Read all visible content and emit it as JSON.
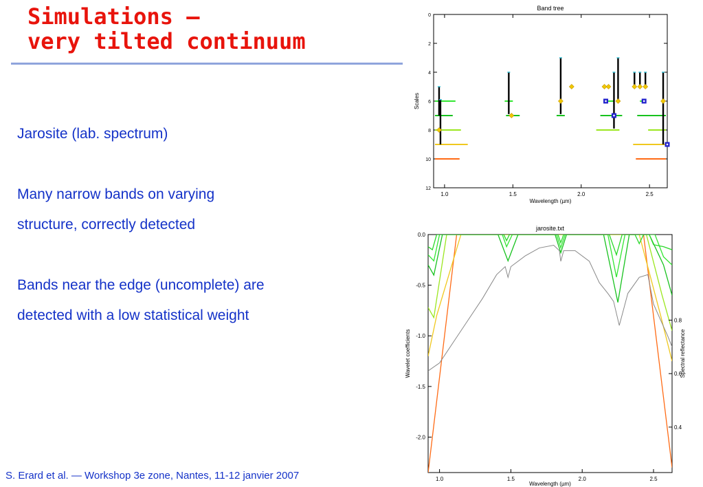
{
  "slide": {
    "title_line1": "Simulations —",
    "title_line2": "very tilted continuum",
    "bullets": [
      "Jarosite (lab. spectrum)",
      "Many narrow bands on varying",
      "structure, correctly detected",
      "Bands near the edge (uncomplete) are",
      "detected with a low statistical weight"
    ],
    "footer": "S. Erard et al. — Workshop 3e zone, Nantes, 11-12 janvier 2007",
    "colors": {
      "title": "#e8140c",
      "text": "#1432c8",
      "rule": "#8fa4dc"
    }
  },
  "chart_data": [
    {
      "type": "scatter",
      "title": "Band tree",
      "xlabel": "Wavelength (µm)",
      "ylabel": "Scales",
      "xlim": [
        0.92,
        2.63
      ],
      "ylim": [
        12,
        0
      ],
      "y_inverted": true,
      "xticks": [
        1.0,
        1.5,
        2.0,
        2.5
      ],
      "xticklabels": [
        "1.0",
        "1.5",
        "2.0",
        "2.5"
      ],
      "yticks": [
        0,
        2,
        4,
        6,
        8,
        10,
        12
      ],
      "yticklabels": [
        "0",
        "2",
        "4",
        "6",
        "8",
        "10",
        "12"
      ],
      "colors": {
        "s5": "#29d829",
        "s6": "#32e632",
        "s7": "#17c21e",
        "s8": "#9be61e",
        "s9": "#f0c81e",
        "s10": "#ff6a14",
        "stem": "#000000",
        "marker_gold": "#f0c800",
        "marker_blue": "#2222cc",
        "tick_cyan": "#34c0d6",
        "tick_pink": "#e63c78"
      },
      "stems": [
        {
          "x": 0.96,
          "y0": 5.0,
          "y1": 7.0
        },
        {
          "x": 0.97,
          "y0": 5.9,
          "y1": 9.0
        },
        {
          "x": 1.47,
          "y0": 4.0,
          "y1": 6.9
        },
        {
          "x": 1.85,
          "y0": 3.0,
          "y1": 6.9
        },
        {
          "x": 2.24,
          "y0": 4.0,
          "y1": 7.9
        },
        {
          "x": 2.27,
          "y0": 3.0,
          "y1": 6.0
        },
        {
          "x": 2.39,
          "y0": 4.0,
          "y1": 5.0
        },
        {
          "x": 2.43,
          "y0": 4.0,
          "y1": 5.0
        },
        {
          "x": 2.47,
          "y0": 4.0,
          "y1": 5.0
        },
        {
          "x": 2.6,
          "y0": 4.0,
          "y1": 9.0
        }
      ],
      "bands": [
        {
          "scale": 6,
          "x0": 0.93,
          "x1": 1.08
        },
        {
          "scale": 7,
          "x0": 0.93,
          "x1": 1.06
        },
        {
          "scale": 8,
          "x0": 0.93,
          "x1": 1.12
        },
        {
          "scale": 9,
          "x0": 0.93,
          "x1": 1.17
        },
        {
          "scale": 10,
          "x0": 0.93,
          "x1": 1.11
        },
        {
          "scale": 6,
          "x0": 1.44,
          "x1": 1.5
        },
        {
          "scale": 7,
          "x0": 1.45,
          "x1": 1.55
        },
        {
          "scale": 7,
          "x0": 1.82,
          "x1": 1.88
        },
        {
          "scale": 6,
          "x0": 2.18,
          "x1": 2.24
        },
        {
          "scale": 7,
          "x0": 2.14,
          "x1": 2.3
        },
        {
          "scale": 8,
          "x0": 2.11,
          "x1": 2.28
        },
        {
          "scale": 6,
          "x0": 2.43,
          "x1": 2.47
        },
        {
          "scale": 7,
          "x0": 2.41,
          "x1": 2.62
        },
        {
          "scale": 8,
          "x0": 2.49,
          "x1": 2.62
        },
        {
          "scale": 9,
          "x0": 2.38,
          "x1": 2.62
        },
        {
          "scale": 10,
          "x0": 2.4,
          "x1": 2.62
        }
      ],
      "gold_markers": [
        {
          "x": 0.96,
          "y": 8.0
        },
        {
          "x": 1.49,
          "y": 7.0
        },
        {
          "x": 1.85,
          "y": 6.0
        },
        {
          "x": 1.93,
          "y": 5.0
        },
        {
          "x": 2.17,
          "y": 5.0
        },
        {
          "x": 2.2,
          "y": 5.0
        },
        {
          "x": 2.27,
          "y": 6.0
        },
        {
          "x": 2.39,
          "y": 5.0
        },
        {
          "x": 2.43,
          "y": 5.0
        },
        {
          "x": 2.47,
          "y": 5.0
        },
        {
          "x": 2.6,
          "y": 6.0
        }
      ],
      "blue_markers": [
        {
          "x": 2.18,
          "y": 6.0
        },
        {
          "x": 2.24,
          "y": 7.0
        },
        {
          "x": 2.46,
          "y": 6.0
        },
        {
          "x": 2.63,
          "y": 9.0
        }
      ]
    },
    {
      "type": "line",
      "title": "jarosite.txt",
      "xlabel": "Wavelength (µm)",
      "ylabel": "Wavelet coefficients",
      "y2label": "Spectral reflectance",
      "xlim": [
        0.92,
        2.63
      ],
      "ylim": [
        -2.35,
        0.0
      ],
      "y2lim": [
        0.23,
        1.12
      ],
      "xticks": [
        1.0,
        1.5,
        2.0,
        2.5
      ],
      "xticklabels": [
        "1.0",
        "1.5",
        "2.0",
        "2.5"
      ],
      "yticks": [
        0.0,
        -0.5,
        -1.0,
        -1.5,
        -2.0
      ],
      "yticklabels": [
        "0.0",
        "-0.5",
        "-1.0",
        "-1.5",
        "-2.0"
      ],
      "y2ticks": [
        0.4,
        0.6,
        0.8
      ],
      "y2ticklabels": [
        "0.4",
        "0.6",
        "0.8"
      ],
      "series": [
        {
          "color": "#ff6a14",
          "x": [
            0.92,
            1.12,
            2.43,
            2.63
          ],
          "y": [
            -2.35,
            0.0,
            0.0,
            -2.3
          ]
        },
        {
          "color": "#f0c81e",
          "x": [
            0.92,
            0.98,
            1.15,
            2.4,
            2.55,
            2.63
          ],
          "y": [
            -1.2,
            -0.8,
            0.0,
            0.0,
            -0.8,
            -1.25
          ]
        },
        {
          "color": "#9be61e",
          "x": [
            0.92,
            0.96,
            1.05,
            2.45,
            2.56,
            2.63
          ],
          "y": [
            -0.72,
            -0.82,
            0.0,
            0.0,
            -0.6,
            -0.95
          ]
        },
        {
          "color": "#17c21e",
          "x": [
            0.92,
            0.96,
            1.02,
            1.41,
            1.48,
            1.55,
            1.81,
            1.85,
            1.89,
            2.15,
            2.25,
            2.33,
            2.47,
            2.57,
            2.63
          ],
          "y": [
            -0.3,
            -0.4,
            0.0,
            0.0,
            -0.26,
            0.0,
            0.0,
            -0.18,
            0.0,
            0.0,
            -0.67,
            0.0,
            0.0,
            -0.3,
            -0.6
          ]
        },
        {
          "color": "#32e632",
          "x": [
            0.92,
            0.96,
            1.0,
            1.44,
            1.47,
            1.51,
            1.82,
            1.85,
            1.88,
            2.18,
            2.24,
            2.3,
            2.51,
            2.57,
            2.63
          ],
          "y": [
            -0.2,
            -0.26,
            0.0,
            0.0,
            -0.12,
            0.0,
            0.0,
            -0.13,
            0.0,
            0.0,
            -0.42,
            0.0,
            0.0,
            -0.22,
            -0.3
          ]
        },
        {
          "color": "#29d829",
          "x": [
            0.92,
            0.95,
            0.98,
            1.45,
            1.47,
            1.49,
            1.83,
            1.85,
            1.87,
            2.19,
            2.24,
            2.28,
            2.37,
            2.4,
            2.43,
            2.47,
            2.5,
            2.57,
            2.63
          ],
          "y": [
            -0.12,
            -0.15,
            0.0,
            0.0,
            -0.06,
            0.0,
            0.0,
            -0.08,
            0.0,
            0.0,
            -0.2,
            0.0,
            0.0,
            -0.09,
            0.0,
            0.0,
            -0.1,
            -0.12,
            -0.15
          ]
        },
        {
          "color": "#888888",
          "x": [
            0.92,
            1.0,
            1.1,
            1.2,
            1.3,
            1.4,
            1.46,
            1.48,
            1.5,
            1.6,
            1.7,
            1.8,
            1.84,
            1.85,
            1.87,
            1.95,
            2.05,
            2.12,
            2.18,
            2.22,
            2.26,
            2.28,
            2.32,
            2.4,
            2.46,
            2.5,
            2.55,
            2.6,
            2.63
          ],
          "y": [
            0.61,
            0.64,
            0.72,
            0.8,
            0.88,
            0.97,
            1.0,
            0.96,
            1.0,
            1.04,
            1.07,
            1.08,
            1.06,
            1.02,
            1.06,
            1.06,
            1.02,
            0.94,
            0.9,
            0.87,
            0.78,
            0.82,
            0.9,
            0.96,
            0.97,
            0.86,
            0.8,
            0.74,
            0.7
          ]
        }
      ]
    }
  ]
}
